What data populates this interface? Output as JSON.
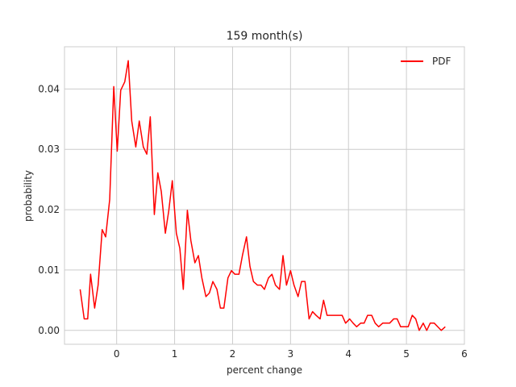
{
  "chart_data": {
    "type": "line",
    "title": "159 month(s)",
    "xlabel": "percent change",
    "ylabel": "probability",
    "xlim": [
      -0.9,
      6.0
    ],
    "ylim": [
      -0.0023,
      0.047
    ],
    "xticks": [
      0,
      1,
      2,
      3,
      4,
      5,
      6
    ],
    "xtick_labels": [
      "0",
      "1",
      "2",
      "3",
      "4",
      "5",
      "6"
    ],
    "yticks": [
      0.0,
      0.01,
      0.02,
      0.03,
      0.04
    ],
    "ytick_labels": [
      "0.00",
      "0.01",
      "0.02",
      "0.03",
      "0.04"
    ],
    "grid": true,
    "legend_position": "top-right",
    "colors": {
      "line": "#ff0000",
      "grid": "#cccccc",
      "spine": "#cccccc",
      "text": "#262626"
    },
    "series": [
      {
        "name": "PDF",
        "x": [
          -0.63,
          -0.56,
          -0.5,
          -0.45,
          -0.38,
          -0.32,
          -0.25,
          -0.19,
          -0.12,
          -0.05,
          0.01,
          0.07,
          0.14,
          0.2,
          0.26,
          0.33,
          0.39,
          0.46,
          0.52,
          0.58,
          0.65,
          0.71,
          0.77,
          0.84,
          0.9,
          0.96,
          1.03,
          1.09,
          1.15,
          1.22,
          1.28,
          1.35,
          1.41,
          1.47,
          1.54,
          1.6,
          1.66,
          1.73,
          1.79,
          1.85,
          1.92,
          1.98,
          2.04,
          2.11,
          2.17,
          2.24,
          2.3,
          2.36,
          2.43,
          2.49,
          2.55,
          2.62,
          2.68,
          2.74,
          2.81,
          2.87,
          2.93,
          3.0,
          3.06,
          3.13,
          3.19,
          3.25,
          3.32,
          3.38,
          3.44,
          3.51,
          3.57,
          3.63,
          3.7,
          3.76,
          3.82,
          3.89,
          3.95,
          4.02,
          4.08,
          4.14,
          4.21,
          4.27,
          4.33,
          4.4,
          4.46,
          4.52,
          4.59,
          4.65,
          4.71,
          4.78,
          4.84,
          4.9,
          4.97,
          5.03,
          5.1,
          5.16,
          5.22,
          5.29,
          5.35,
          5.41,
          5.48,
          5.54,
          5.6,
          5.67
        ],
        "y": [
          0.0068,
          0.0019,
          0.0019,
          0.0093,
          0.0037,
          0.0075,
          0.0167,
          0.0155,
          0.0217,
          0.0404,
          0.0297,
          0.0398,
          0.0412,
          0.0447,
          0.0347,
          0.0304,
          0.0347,
          0.0304,
          0.0292,
          0.0354,
          0.0192,
          0.0261,
          0.023,
          0.0161,
          0.0199,
          0.0248,
          0.0161,
          0.0136,
          0.0068,
          0.0199,
          0.0149,
          0.0112,
          0.0124,
          0.0087,
          0.0056,
          0.0062,
          0.0081,
          0.0068,
          0.0037,
          0.0037,
          0.0087,
          0.0099,
          0.0093,
          0.0093,
          0.0124,
          0.0155,
          0.0106,
          0.0081,
          0.0075,
          0.0075,
          0.0068,
          0.0087,
          0.0093,
          0.0075,
          0.0068,
          0.0124,
          0.0075,
          0.0099,
          0.0075,
          0.0056,
          0.0081,
          0.0081,
          0.0019,
          0.0031,
          0.0025,
          0.0019,
          0.005,
          0.0025,
          0.0025,
          0.0025,
          0.0025,
          0.0025,
          0.0012,
          0.0019,
          0.0012,
          0.0006,
          0.0012,
          0.0012,
          0.0025,
          0.0025,
          0.0012,
          0.0006,
          0.0012,
          0.0012,
          0.0012,
          0.0019,
          0.0019,
          0.0006,
          0.0006,
          0.0006,
          0.0025,
          0.0019,
          0.0,
          0.0012,
          0.0,
          0.0012,
          0.0012,
          0.0006,
          0.0,
          0.0006
        ]
      }
    ]
  }
}
